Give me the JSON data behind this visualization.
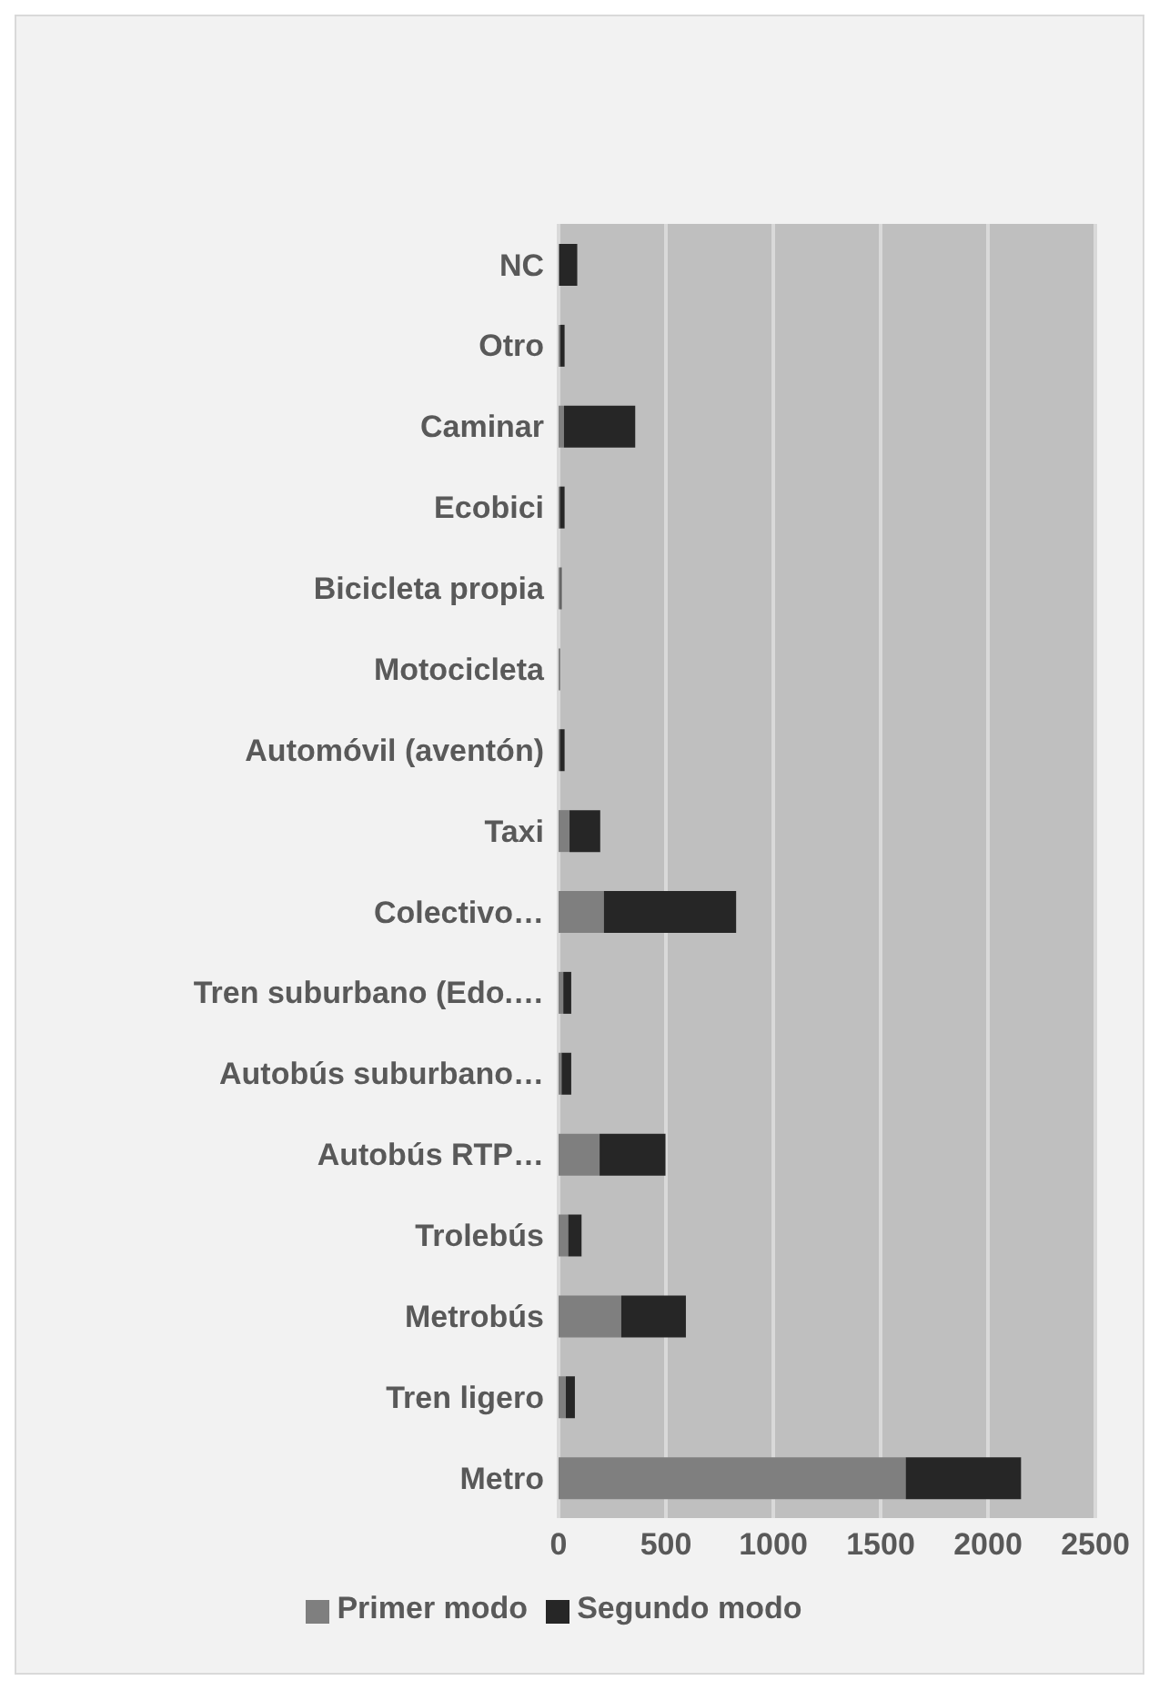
{
  "chart_data": {
    "type": "bar",
    "orientation": "horizontal",
    "stacked": true,
    "categories": [
      "NC",
      "Otro",
      "Caminar",
      "Ecobici",
      "Bicicleta propia",
      "Motocicleta",
      "Automóvil (aventón)",
      "Taxi",
      "Colectivo…",
      "Tren suburbano (Edo.…",
      "Autobús suburbano…",
      "Autobús RTP…",
      "Trolebús",
      "Metrobús",
      "Tren ligero",
      "Metro"
    ],
    "series": [
      {
        "name": "Primer modo",
        "color": "#7f7f7f",
        "values": [
          3,
          8,
          25,
          6,
          10,
          8,
          6,
          51,
          211,
          22,
          14,
          191,
          45,
          292,
          34,
          1617
        ]
      },
      {
        "name": "Segundo modo",
        "color": "#262626",
        "values": [
          84,
          20,
          332,
          22,
          4,
          0,
          22,
          143,
          616,
          37,
          45,
          307,
          62,
          301,
          42,
          537
        ]
      }
    ],
    "xlim": [
      0,
      2500
    ],
    "xticks": [
      0,
      500,
      1000,
      1500,
      2000,
      2500
    ],
    "grid": "x",
    "legend": "bottom"
  }
}
